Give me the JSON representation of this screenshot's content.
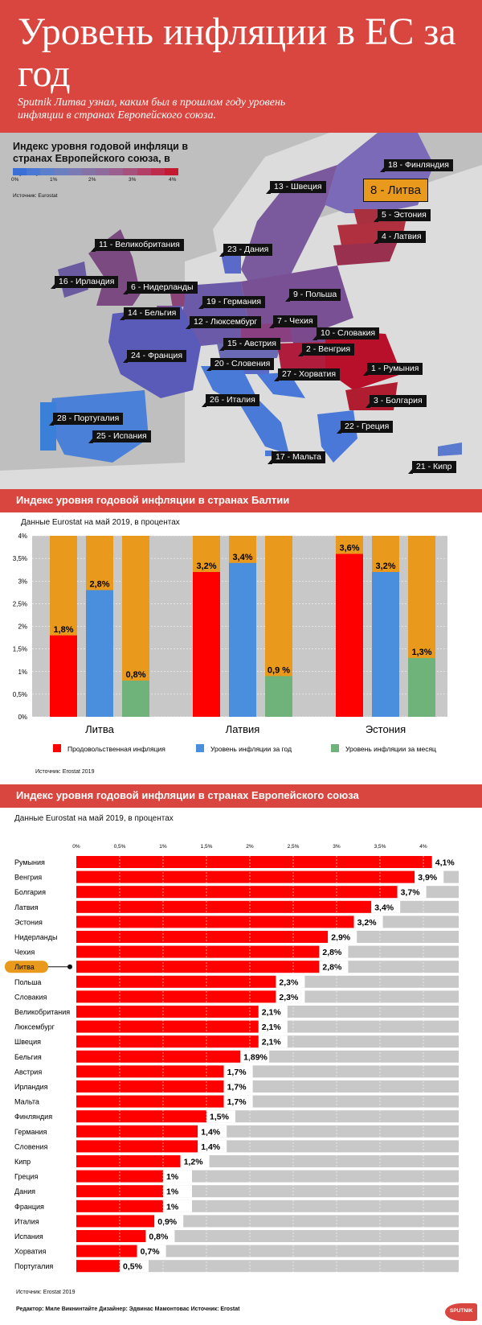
{
  "header": {
    "title": "Уровень инфляции в ЕС за год",
    "lead": "Sputnik Литва узнал, каким был в прошлом году уровень инфляции в странах Европейского союза."
  },
  "map": {
    "title": "Индекс уровня годовой инфляци в странах Европейского союза, в процентах",
    "scale_colors": [
      "#3a6fd8",
      "#4a78d2",
      "#5b7fca",
      "#6a7ec0",
      "#7a7ab4",
      "#8573a8",
      "#8f6a9c",
      "#9a5e8f",
      "#a8507c",
      "#b33f66",
      "#bd2c4b",
      "#c41a30"
    ],
    "scale_ticks": [
      "0%",
      "1%",
      "2%",
      "3%",
      "4%"
    ],
    "source": "Источник: Eurostat",
    "labels": [
      "18 - Финляндия",
      "13 - Швеция",
      "8 - Литва",
      "5 - Эстония",
      "4 - Латвия",
      "11 - Великобритания",
      "23 - Дания",
      "16 - Ирландия",
      "6 - Нидерланды",
      "19 - Германия",
      "9 - Польша",
      "14 - Бельгия",
      "12 - Люксембург",
      "7 - Чехия",
      "10 - Словакия",
      "24 - Франция",
      "15 - Австрия",
      "2 - Венгрия",
      "20 - Словения",
      "1 - Румыния",
      "27 - Хорватия",
      "26 - Италия",
      "3 - Болгария",
      "28 - Португалия",
      "22 - Греция",
      "25 - Испания",
      "17 - Мальта",
      "21 - Кипр"
    ]
  },
  "baltic": {
    "band_title": "Индекс уровня годовой инфляции в странах Балтии",
    "subtitle": "Данные Eurostat на май 2019, в процентах",
    "source": "Источник: Erostat 2019"
  },
  "eu": {
    "band_title": "Индекс уровня  годовой инфляции в странах Европейского союза",
    "subtitle": "Данные Eurostat на май 2019, в процентах",
    "source": "Источник: Erostat 2019"
  },
  "footer": {
    "credits": "Редактор: Миле Викнинтайте  Дизайнер: Эдвинас Мамонтовас  Источник: Erostat",
    "logo": "SPUTNIK"
  },
  "colors": {
    "accent": "#d8463f",
    "food": "#ff0000",
    "annual": "#4a8fde",
    "monthly": "#6fb37a",
    "background_bar": "#e99a1c",
    "lithuania_highlight": "#e99a1c"
  },
  "chart_data": [
    {
      "type": "bar",
      "title": "",
      "categories": [
        "Литва",
        "Латвия",
        "Эстония"
      ],
      "series": [
        {
          "name": "Продовольственная инфляция",
          "values": [
            1.8,
            3.2,
            3.6
          ],
          "labels": [
            "1,8%",
            "3,2%",
            "3,6%"
          ]
        },
        {
          "name": "Уровень инфляции за год",
          "values": [
            2.8,
            3.4,
            3.2
          ],
          "labels": [
            "2,8%",
            "3,4%",
            "3,2%"
          ]
        },
        {
          "name": "Уровень инфляции за месяц",
          "values": [
            0.8,
            0.9,
            1.3
          ],
          "labels": [
            "0,8%",
            "0,9 %",
            "1,3%"
          ]
        }
      ],
      "ylim": [
        0,
        4
      ],
      "yticks": [
        "0%",
        "0,5%",
        "1%",
        "1,5%",
        "2%",
        "2,5%",
        "3%",
        "3,5%",
        "4%"
      ],
      "grid": true,
      "legend": "bottom"
    },
    {
      "type": "bar",
      "orientation": "horizontal",
      "title": "",
      "categories": [
        "Румыния",
        "Венгрия",
        "Болгария",
        "Латвия",
        "Эстония",
        "Нидерланды",
        "Чехия",
        "Литва",
        "Польша",
        "Словакия",
        "Великобритания",
        "Люксембург",
        "Швеция",
        "Бельгия",
        "Австрия",
        "Ирландия",
        "Мальта",
        "Финляндия",
        "Германия",
        "Словения",
        "Кипр",
        "Греция",
        "Дания",
        "Франция",
        "Италия",
        "Испания",
        "Хорватия",
        "Португалия"
      ],
      "values": [
        4.1,
        3.9,
        3.7,
        3.4,
        3.2,
        2.9,
        2.8,
        2.8,
        2.3,
        2.3,
        2.1,
        2.1,
        2.1,
        1.89,
        1.7,
        1.7,
        1.7,
        1.5,
        1.4,
        1.4,
        1.2,
        1.0,
        1.0,
        1.0,
        0.9,
        0.8,
        0.7,
        0.5
      ],
      "labels": [
        "4,1%",
        "3,9%",
        "3,7%",
        "3,4%",
        "3,2%",
        "2,9%",
        "2,8%",
        "2,8%",
        "2,3%",
        "2,3%",
        "2,1%",
        "2,1%",
        "2,1%",
        "1,89%",
        "1,7%",
        "1,7%",
        "1,7%",
        "1,5%",
        "1,4%",
        "1,4%",
        "1,2%",
        "1%",
        "1%",
        "1%",
        "0,9%",
        "0,8%",
        "0,7%",
        "0,5%"
      ],
      "highlight": "Литва",
      "xlim": [
        0,
        4.4
      ],
      "xticks": [
        "0%",
        "0,5%",
        "1%",
        "1,5%",
        "2%",
        "2,5%",
        "3%",
        "3,5%",
        "4%"
      ],
      "grid": true
    }
  ]
}
